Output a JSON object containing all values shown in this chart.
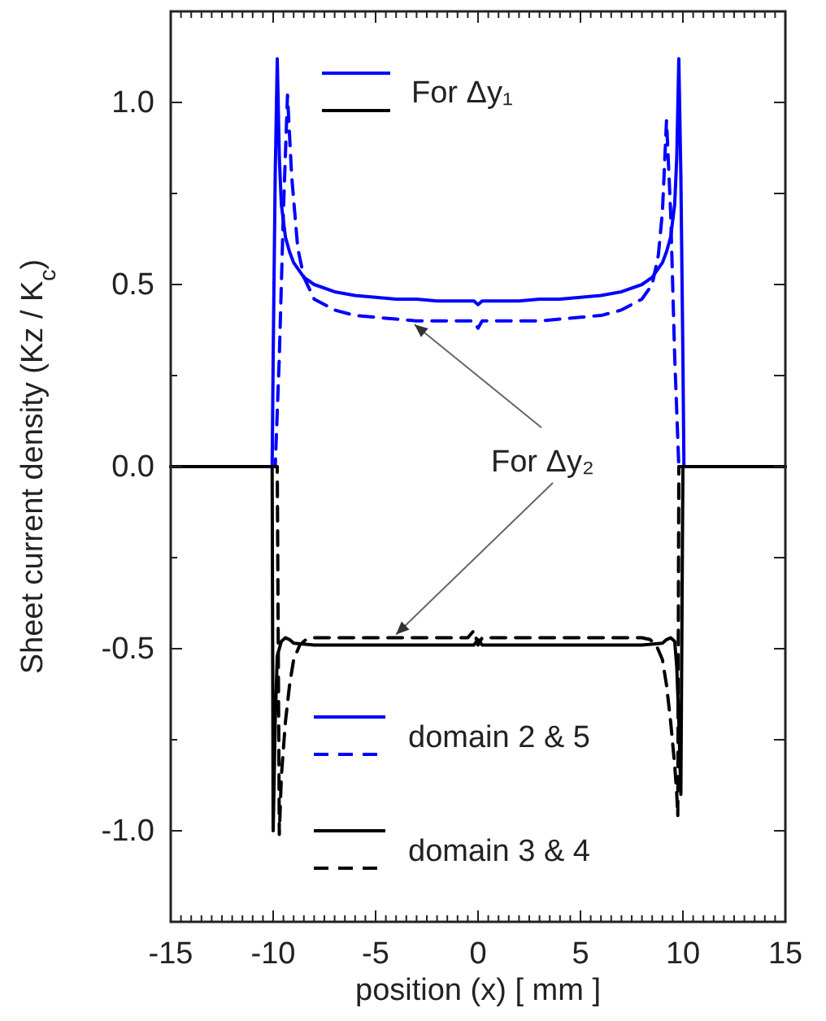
{
  "chart_data": {
    "type": "line",
    "xlabel": "position (x) [ mm ]",
    "ylabel": "Sheet current density (Kz / K$_{c}$)",
    "xlim": [
      -15,
      15
    ],
    "ylim": [
      -1.25,
      1.25
    ],
    "xticks": [
      -15,
      -10,
      -5,
      0,
      5,
      10,
      15
    ],
    "yticks": [
      {
        "value": -1,
        "label": "-1.0"
      },
      {
        "value": -0.75,
        "label": null
      },
      {
        "value": -0.5,
        "label": "-0.5"
      },
      {
        "value": -0.25,
        "label": null
      },
      {
        "value": 0,
        "label": "0.0"
      },
      {
        "value": 0.25,
        "label": null
      },
      {
        "value": 0.5,
        "label": "0.5"
      },
      {
        "value": 0.75,
        "label": null
      },
      {
        "value": 1,
        "label": "1.0"
      }
    ],
    "grid": false,
    "legend": "bottom left",
    "marker": "none",
    "annotations": [
      "For Δy₁",
      {
        "text": "For Δy₂",
        "x": -3.1,
        "y": 0.39
      }
    ],
    "series": [
      {
        "name": "domain 2 & 5",
        "color": "#0000ff",
        "line_style": "solid",
        "x": [
          -15,
          -10.05,
          -10,
          -9.9,
          -9.8,
          -9.7,
          -9.6,
          -9.4,
          -9.2,
          -9,
          -8.5,
          -8,
          -7,
          -6,
          -5,
          -4,
          -3,
          -2,
          -1,
          -0.2,
          0,
          0.2,
          1,
          2,
          3,
          4,
          5,
          6,
          7,
          8,
          8.5,
          9,
          9.2,
          9.4,
          9.6,
          9.7,
          9.8,
          9.9,
          10,
          10.05,
          15
        ],
        "values": [
          0,
          0,
          0.3,
          0.8,
          1.12,
          0.85,
          0.72,
          0.63,
          0.59,
          0.56,
          0.52,
          0.5,
          0.48,
          0.47,
          0.465,
          0.46,
          0.46,
          0.455,
          0.455,
          0.455,
          0.445,
          0.455,
          0.455,
          0.455,
          0.46,
          0.46,
          0.465,
          0.47,
          0.48,
          0.5,
          0.52,
          0.56,
          0.59,
          0.63,
          0.72,
          0.85,
          1.12,
          0.8,
          0.3,
          0,
          0
        ]
      },
      {
        "color": "#0000ff",
        "line_style": "dashed",
        "x": [
          -15,
          -9.9,
          -9.7,
          -9.5,
          -9.3,
          -9.1,
          -8.8,
          -8.5,
          -8,
          -7,
          -6,
          -5,
          -4,
          -3,
          -2,
          -1,
          -0.2,
          0,
          0.2,
          1,
          2,
          3,
          4,
          5,
          6,
          7,
          8,
          8.5,
          8.8,
          9,
          9.2,
          9.4,
          9.6,
          9.8,
          15
        ],
        "values": [
          0,
          0,
          0.3,
          0.7,
          1.02,
          0.8,
          0.6,
          0.52,
          0.46,
          0.43,
          0.415,
          0.41,
          0.405,
          0.4,
          0.4,
          0.4,
          0.4,
          0.38,
          0.4,
          0.4,
          0.4,
          0.4,
          0.405,
          0.41,
          0.415,
          0.43,
          0.46,
          0.5,
          0.58,
          0.7,
          0.95,
          0.7,
          0.3,
          0,
          0
        ]
      },
      {
        "name": "domain 3 & 4",
        "color": "#000000",
        "line_style": "solid",
        "x": [
          -15,
          -10.05,
          -10,
          -9.9,
          -9.8,
          -9.6,
          -9.4,
          -9.2,
          -9,
          -8,
          -6,
          -4,
          -2,
          -0.2,
          0,
          0.2,
          2,
          4,
          6,
          8,
          9,
          9.2,
          9.4,
          9.6,
          9.7,
          9.8,
          9.9,
          10,
          15
        ],
        "values": [
          0,
          0,
          -1,
          -0.7,
          -0.52,
          -0.48,
          -0.47,
          -0.475,
          -0.485,
          -0.49,
          -0.49,
          -0.49,
          -0.49,
          -0.49,
          -0.475,
          -0.49,
          -0.49,
          -0.49,
          -0.49,
          -0.49,
          -0.485,
          -0.475,
          -0.47,
          -0.48,
          -0.55,
          -0.7,
          -0.9,
          0,
          0
        ]
      },
      {
        "color": "#000000",
        "line_style": "dashed",
        "x": [
          -15,
          -9.8,
          -9.7,
          -9.6,
          -9.4,
          -9.2,
          -9,
          -8.7,
          -8.4,
          -8,
          -6,
          -4,
          -2,
          -0.5,
          -0.2,
          0,
          0.2,
          2,
          4,
          6,
          8,
          8.4,
          8.7,
          9,
          9.2,
          9.4,
          9.6,
          9.7,
          9.75,
          9.8,
          15
        ],
        "values": [
          0,
          0,
          -1.01,
          -0.85,
          -0.7,
          -0.6,
          -0.53,
          -0.49,
          -0.475,
          -0.47,
          -0.47,
          -0.47,
          -0.47,
          -0.47,
          -0.45,
          -0.49,
          -0.47,
          -0.47,
          -0.47,
          -0.47,
          -0.47,
          -0.475,
          -0.49,
          -0.53,
          -0.6,
          -0.7,
          -0.82,
          -0.9,
          -0.96,
          0,
          0
        ]
      }
    ]
  }
}
